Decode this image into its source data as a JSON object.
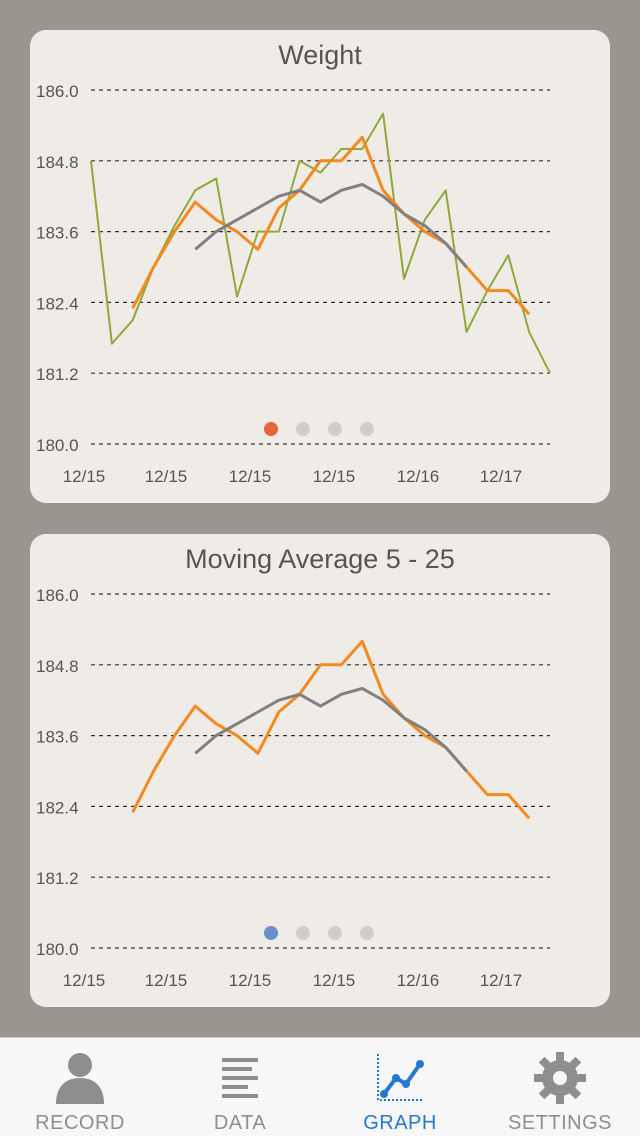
{
  "colors": {
    "background": "#9a958f",
    "card": "#efece8",
    "raw_series": "#8fa83a",
    "short_ma": "#f5891e",
    "long_ma": "#808080",
    "active_tab": "#2378d3",
    "inactive_tab": "#8e8e8e"
  },
  "charts": [
    {
      "title": "Weight",
      "page_indicator": {
        "pages": 4,
        "active": 0,
        "active_color": "#e8643c"
      },
      "show_raw": true
    },
    {
      "title": "Moving Average 5 - 25",
      "page_indicator": {
        "pages": 4,
        "active": 0,
        "active_color": "#6d8fc9"
      },
      "show_raw": false
    }
  ],
  "chart_data": [
    {
      "type": "line",
      "title": "Weight",
      "ylim": [
        180.0,
        186.0
      ],
      "y_ticks": [
        "186.0",
        "184.8",
        "183.6",
        "182.4",
        "181.2",
        "180.0"
      ],
      "x_tick_labels": [
        "12/15",
        "12/15",
        "12/15",
        "12/15",
        "12/16",
        "12/17"
      ],
      "grid": "dashed-horizontal",
      "series": [
        {
          "color": "#8fa83a",
          "values": [
            184.8,
            181.7,
            182.1,
            183.0,
            183.7,
            184.3,
            184.5,
            182.5,
            183.6,
            183.6,
            184.8,
            184.6,
            185.0,
            185.0,
            185.6,
            182.8,
            183.8,
            184.3,
            181.9,
            182.6,
            183.2,
            181.9,
            181.2
          ]
        },
        {
          "color": "#f5891e",
          "values": [
            null,
            null,
            182.3,
            183.0,
            183.6,
            184.1,
            183.8,
            183.6,
            183.3,
            184.0,
            184.3,
            184.8,
            184.8,
            185.2,
            184.3,
            183.9,
            183.6,
            183.4,
            183.0,
            182.6,
            182.6,
            182.2,
            null
          ]
        },
        {
          "color": "#808080",
          "values": [
            null,
            null,
            null,
            null,
            null,
            183.3,
            183.6,
            183.8,
            184.0,
            184.2,
            184.3,
            184.1,
            184.3,
            184.4,
            184.2,
            183.9,
            183.7,
            183.4,
            183.0,
            null,
            null,
            null,
            null
          ]
        }
      ]
    },
    {
      "type": "line",
      "title": "Moving Average 5 - 25",
      "ylim": [
        180.0,
        186.0
      ],
      "y_ticks": [
        "186.0",
        "184.8",
        "183.6",
        "182.4",
        "181.2",
        "180.0"
      ],
      "x_tick_labels": [
        "12/15",
        "12/15",
        "12/15",
        "12/15",
        "12/16",
        "12/17"
      ],
      "grid": "dashed-horizontal",
      "series": [
        {
          "color": "#f5891e",
          "values": [
            null,
            null,
            182.3,
            183.0,
            183.6,
            184.1,
            183.8,
            183.6,
            183.3,
            184.0,
            184.3,
            184.8,
            184.8,
            185.2,
            184.3,
            183.9,
            183.6,
            183.4,
            183.0,
            182.6,
            182.6,
            182.2,
            null
          ]
        },
        {
          "color": "#808080",
          "values": [
            null,
            null,
            null,
            null,
            null,
            183.3,
            183.6,
            183.8,
            184.0,
            184.2,
            184.3,
            184.1,
            184.3,
            184.4,
            184.2,
            183.9,
            183.7,
            183.4,
            183.0,
            null,
            null,
            null,
            null
          ]
        }
      ]
    }
  ],
  "tabbar": {
    "tabs": [
      {
        "label": "RECORD",
        "icon": "person-icon",
        "active": false
      },
      {
        "label": "DATA",
        "icon": "list-icon",
        "active": false
      },
      {
        "label": "GRAPH",
        "icon": "graph-icon",
        "active": true
      },
      {
        "label": "SETTINGS",
        "icon": "gear-icon",
        "active": false
      }
    ]
  }
}
